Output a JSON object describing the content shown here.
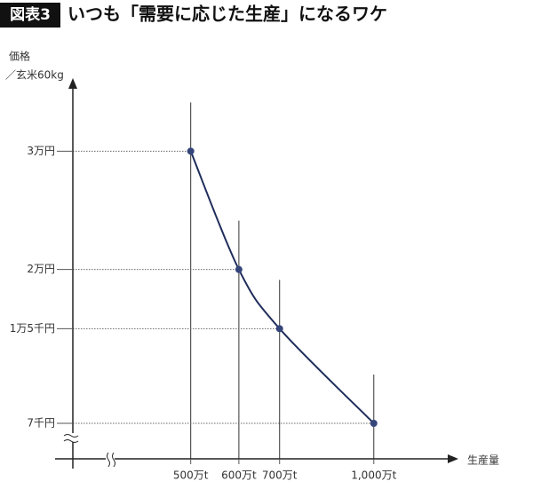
{
  "chart_data": {
    "type": "line",
    "badge": "図表3",
    "title": "いつも「需要に応じた生産」になるワケ",
    "y_label": [
      "価格",
      "／玄米60kg"
    ],
    "x_label": "生産量",
    "x": [
      500,
      600,
      700,
      1000
    ],
    "series": [
      {
        "color": "#1f2d5a",
        "values": [
          30000,
          20000,
          15000,
          7000
        ]
      }
    ],
    "xscale": "log",
    "xlim": [
      320,
      1350
    ],
    "xticks": [
      {
        "value": 500,
        "label": "500万t"
      },
      {
        "value": 600,
        "label": "600万t"
      },
      {
        "value": 700,
        "label": "700万t"
      },
      {
        "value": 1000,
        "label": "1,000万t"
      }
    ],
    "ylim": [
      4000,
      34000
    ],
    "yticks": [
      {
        "value": 7000,
        "label": "7千円"
      },
      {
        "value": 15000,
        "label": "1万5千円"
      },
      {
        "value": 20000,
        "label": "2万円"
      },
      {
        "value": 30000,
        "label": "3万円"
      }
    ],
    "point_color": "#34457a"
  }
}
